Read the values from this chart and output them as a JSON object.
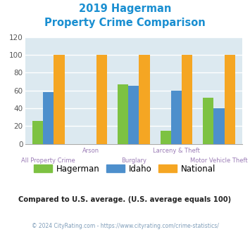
{
  "title_line1": "2019 Hagerman",
  "title_line2": "Property Crime Comparison",
  "categories": [
    "All Property Crime",
    "Arson",
    "Burglary",
    "Larceny & Theft",
    "Motor Vehicle Theft"
  ],
  "hagerman": [
    26,
    0,
    67,
    15,
    52
  ],
  "idaho": [
    58,
    0,
    65,
    60,
    40
  ],
  "national": [
    100,
    100,
    100,
    100,
    100
  ],
  "bar_color_hagerman": "#7dc242",
  "bar_color_idaho": "#4d8fcc",
  "bar_color_national": "#f5a623",
  "ylim": [
    0,
    120
  ],
  "yticks": [
    0,
    20,
    40,
    60,
    80,
    100,
    120
  ],
  "legend_labels": [
    "Hagerman",
    "Idaho",
    "National"
  ],
  "note": "Compared to U.S. average. (U.S. average equals 100)",
  "footer": "© 2024 CityRating.com - https://www.cityrating.com/crime-statistics/",
  "title_color": "#1a8fd1",
  "note_color": "#222222",
  "footer_color": "#7f9db9",
  "bg_color": "#dce9f0",
  "grid_color": "#ffffff",
  "xlabel_color": "#9b7cb6",
  "ytick_color": "#555555"
}
